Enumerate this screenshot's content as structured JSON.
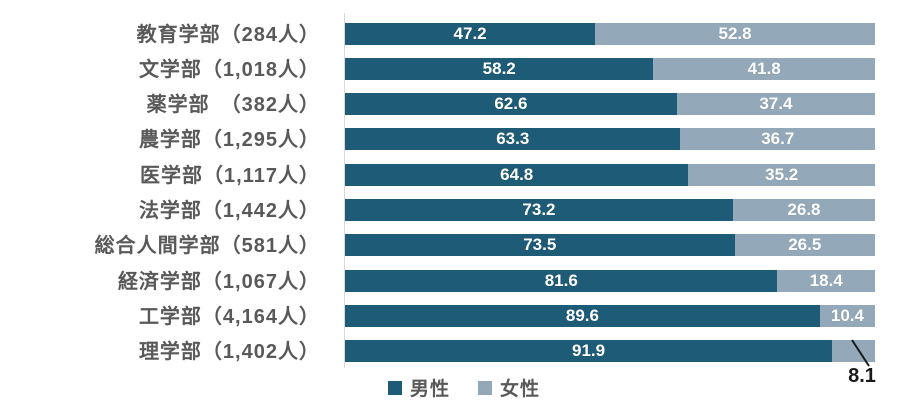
{
  "chart_data": {
    "type": "bar",
    "variant": "horizontal-stacked-100pct",
    "title": "",
    "xlabel": "",
    "ylabel": "",
    "xlim": [
      0,
      100
    ],
    "grid": false,
    "legend_position": "bottom",
    "categories": [
      "教育学部（284人）",
      "文学部（1,018人）",
      "薬学部　（382人）",
      "農学部（1,295人）",
      "医学部（1,117人）",
      "法学部（1,442人）",
      "総合人間学部（581人）",
      "経済学部（1,067人）",
      "工学部（4,164人）",
      "理学部（1,402人）"
    ],
    "series": [
      {
        "name": "男性",
        "color": "#1E5B76",
        "values": [
          47.2,
          58.2,
          62.6,
          63.3,
          64.8,
          73.2,
          73.5,
          81.6,
          89.6,
          91.9
        ]
      },
      {
        "name": "女性",
        "color": "#93A8B8",
        "values": [
          52.8,
          41.8,
          37.4,
          36.7,
          35.2,
          26.8,
          26.5,
          18.4,
          10.4,
          8.1
        ]
      }
    ],
    "callout": {
      "label": "8.1",
      "row": 9,
      "series": 1
    }
  },
  "colors": {
    "axis_line": "#d9d9d9",
    "category_label": "#595959",
    "value_label": "#ffffff",
    "callout_text": "#1a1a1a",
    "background": "#ffffff"
  }
}
